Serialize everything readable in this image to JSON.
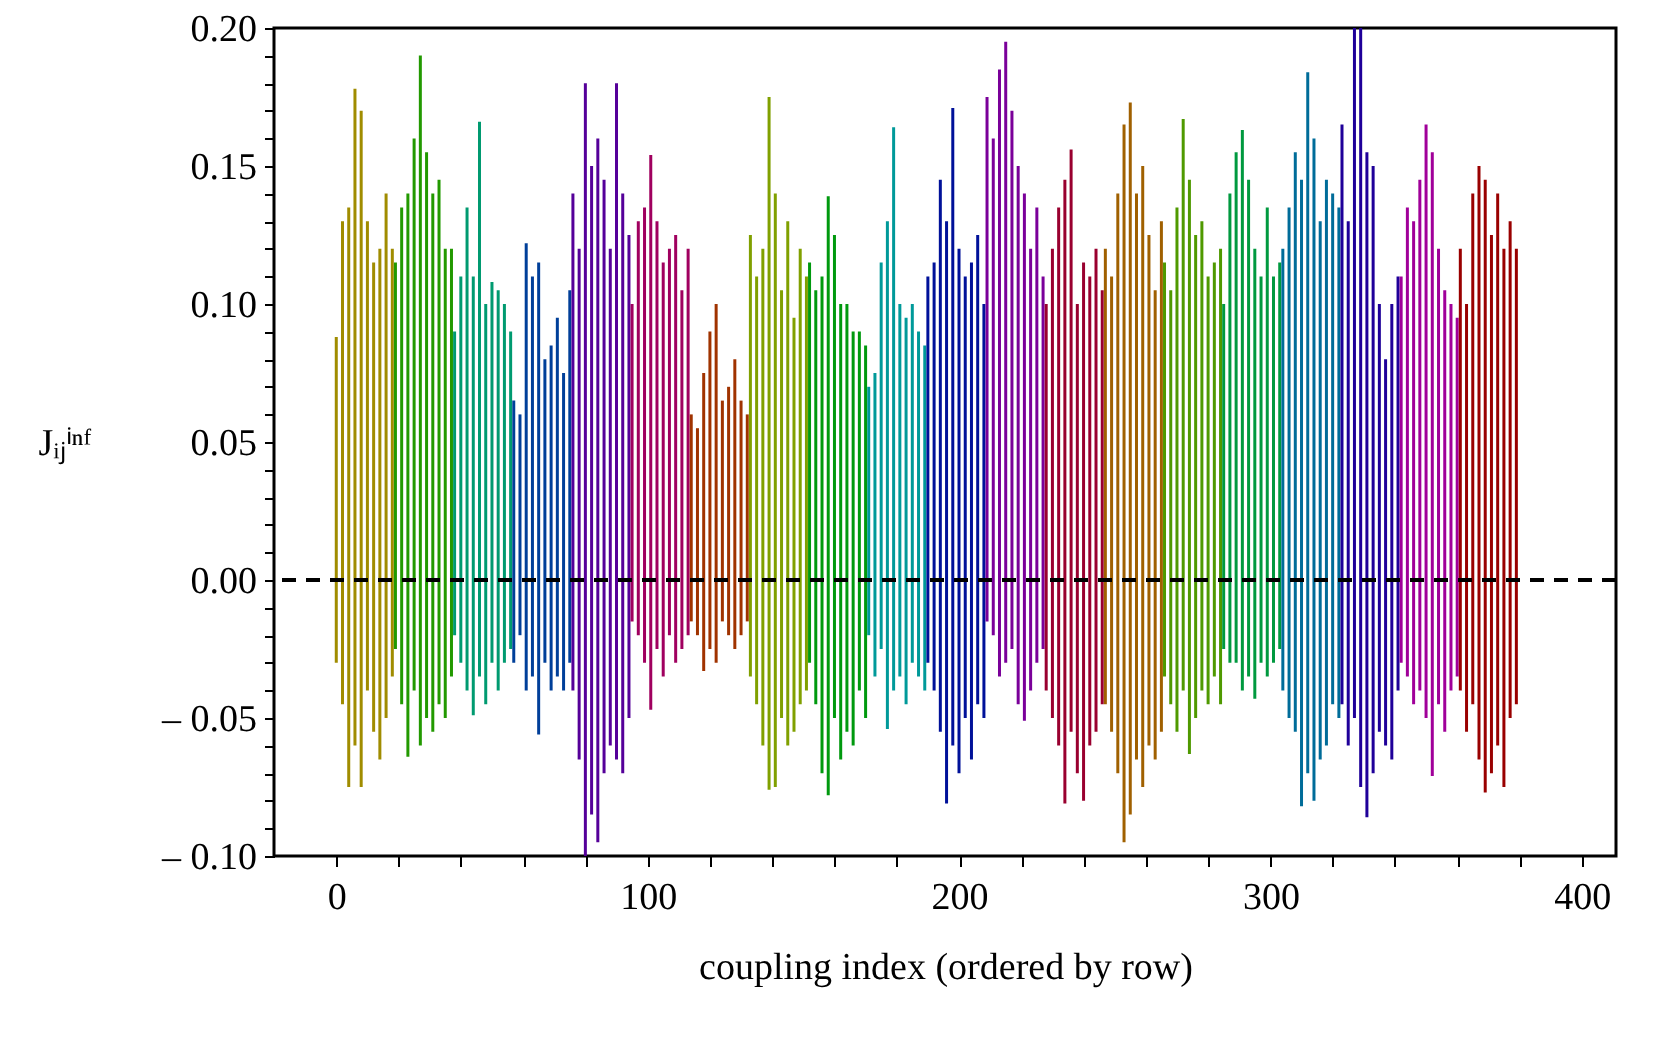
{
  "chart_data": {
    "type": "bar",
    "xlabel": "coupling index (ordered by row)",
    "ylabel": "Jᵢⱼⁱⁿᶠ",
    "x": [
      0,
      2,
      4,
      6,
      8,
      10,
      12,
      14,
      16,
      18,
      19,
      21,
      23,
      25,
      27,
      29,
      31,
      33,
      35,
      37,
      38,
      40,
      42,
      44,
      46,
      48,
      50,
      52,
      54,
      56,
      57,
      59,
      61,
      63,
      65,
      67,
      69,
      71,
      73,
      75,
      76,
      78,
      80,
      82,
      84,
      86,
      88,
      90,
      92,
      94,
      95,
      97,
      99,
      101,
      103,
      105,
      107,
      109,
      111,
      113,
      114,
      116,
      118,
      120,
      122,
      124,
      126,
      128,
      130,
      132,
      133,
      135,
      137,
      139,
      141,
      143,
      145,
      147,
      149,
      151,
      152,
      154,
      156,
      158,
      160,
      162,
      164,
      166,
      168,
      170,
      171,
      173,
      175,
      177,
      179,
      181,
      183,
      185,
      187,
      189,
      190,
      192,
      194,
      196,
      198,
      200,
      202,
      204,
      206,
      208,
      209,
      211,
      213,
      215,
      217,
      219,
      221,
      223,
      225,
      227,
      228,
      230,
      232,
      234,
      236,
      238,
      240,
      242,
      244,
      246,
      247,
      249,
      251,
      253,
      255,
      257,
      259,
      261,
      263,
      265,
      266,
      268,
      270,
      272,
      274,
      276,
      278,
      280,
      282,
      284,
      285,
      287,
      289,
      291,
      293,
      295,
      297,
      299,
      301,
      303,
      304,
      306,
      308,
      310,
      312,
      314,
      316,
      318,
      320,
      322,
      323,
      325,
      327,
      329,
      331,
      333,
      335,
      337,
      339,
      341,
      342,
      344,
      346,
      348,
      350,
      352,
      354,
      356,
      358,
      360,
      361,
      363,
      365,
      367,
      369,
      371,
      373,
      375,
      377,
      379
    ],
    "base": [
      -0.03,
      -0.045,
      -0.075,
      -0.06,
      -0.075,
      -0.04,
      -0.055,
      -0.065,
      -0.05,
      -0.035,
      -0.025,
      -0.045,
      -0.064,
      -0.04,
      -0.06,
      -0.05,
      -0.055,
      -0.045,
      -0.05,
      -0.035,
      -0.02,
      -0.03,
      -0.04,
      -0.049,
      -0.035,
      -0.045,
      -0.03,
      -0.04,
      -0.03,
      -0.025,
      -0.03,
      -0.02,
      -0.04,
      -0.035,
      -0.056,
      -0.03,
      -0.04,
      -0.035,
      -0.04,
      -0.03,
      -0.04,
      -0.065,
      -0.1,
      -0.085,
      -0.095,
      -0.07,
      -0.06,
      -0.065,
      -0.07,
      -0.05,
      -0.015,
      -0.02,
      -0.03,
      -0.047,
      -0.025,
      -0.035,
      -0.02,
      -0.03,
      -0.025,
      -0.02,
      -0.015,
      -0.02,
      -0.033,
      -0.025,
      -0.03,
      -0.015,
      -0.02,
      -0.025,
      -0.02,
      -0.015,
      -0.035,
      -0.045,
      -0.06,
      -0.076,
      -0.075,
      -0.05,
      -0.06,
      -0.055,
      -0.045,
      -0.04,
      -0.03,
      -0.045,
      -0.07,
      -0.078,
      -0.05,
      -0.065,
      -0.055,
      -0.06,
      -0.04,
      -0.05,
      -0.02,
      -0.035,
      -0.025,
      -0.054,
      -0.04,
      -0.035,
      -0.045,
      -0.03,
      -0.035,
      -0.04,
      -0.03,
      -0.04,
      -0.055,
      -0.081,
      -0.06,
      -0.07,
      -0.05,
      -0.065,
      -0.045,
      -0.05,
      -0.015,
      -0.02,
      -0.035,
      -0.03,
      -0.025,
      -0.045,
      -0.051,
      -0.04,
      -0.03,
      -0.025,
      -0.04,
      -0.05,
      -0.06,
      -0.081,
      -0.055,
      -0.07,
      -0.08,
      -0.06,
      -0.055,
      -0.045,
      -0.045,
      -0.055,
      -0.07,
      -0.095,
      -0.085,
      -0.065,
      -0.075,
      -0.06,
      -0.065,
      -0.055,
      -0.035,
      -0.045,
      -0.055,
      -0.04,
      -0.063,
      -0.05,
      -0.04,
      -0.045,
      -0.035,
      -0.045,
      -0.025,
      -0.03,
      -0.03,
      -0.04,
      -0.035,
      -0.043,
      -0.03,
      -0.035,
      -0.03,
      -0.025,
      -0.04,
      -0.05,
      -0.055,
      -0.082,
      -0.07,
      -0.08,
      -0.065,
      -0.06,
      -0.045,
      -0.05,
      -0.045,
      -0.06,
      -0.05,
      -0.075,
      -0.086,
      -0.07,
      -0.055,
      -0.06,
      -0.065,
      -0.04,
      -0.03,
      -0.035,
      -0.045,
      -0.04,
      -0.05,
      -0.071,
      -0.045,
      -0.055,
      -0.04,
      -0.035,
      -0.04,
      -0.055,
      -0.045,
      -0.065,
      -0.077,
      -0.07,
      -0.06,
      -0.075,
      -0.05,
      -0.045
    ],
    "values": [
      0.118,
      0.175,
      0.21,
      0.238,
      0.245,
      0.17,
      0.17,
      0.185,
      0.19,
      0.155,
      0.14,
      0.18,
      0.204,
      0.2,
      0.25,
      0.205,
      0.195,
      0.19,
      0.17,
      0.155,
      0.11,
      0.14,
      0.175,
      0.159,
      0.201,
      0.145,
      0.138,
      0.145,
      0.13,
      0.115,
      0.095,
      0.08,
      0.162,
      0.145,
      0.171,
      0.11,
      0.125,
      0.13,
      0.115,
      0.135,
      0.18,
      0.185,
      0.28,
      0.235,
      0.255,
      0.215,
      0.18,
      0.245,
      0.21,
      0.175,
      0.115,
      0.15,
      0.165,
      0.201,
      0.155,
      0.15,
      0.14,
      0.155,
      0.13,
      0.14,
      0.075,
      0.075,
      0.108,
      0.115,
      0.13,
      0.08,
      0.09,
      0.105,
      0.085,
      0.075,
      0.16,
      0.155,
      0.18,
      0.251,
      0.215,
      0.155,
      0.19,
      0.15,
      0.165,
      0.15,
      0.145,
      0.15,
      0.18,
      0.217,
      0.175,
      0.165,
      0.155,
      0.15,
      0.13,
      0.135,
      0.09,
      0.11,
      0.14,
      0.184,
      0.204,
      0.135,
      0.14,
      0.13,
      0.125,
      0.125,
      0.14,
      0.155,
      0.2,
      0.211,
      0.231,
      0.19,
      0.16,
      0.18,
      0.17,
      0.15,
      0.19,
      0.18,
      0.22,
      0.225,
      0.195,
      0.195,
      0.191,
      0.16,
      0.165,
      0.135,
      0.14,
      0.17,
      0.195,
      0.226,
      0.211,
      0.17,
      0.195,
      0.17,
      0.175,
      0.15,
      0.165,
      0.165,
      0.21,
      0.26,
      0.258,
      0.205,
      0.225,
      0.185,
      0.17,
      0.185,
      0.15,
      0.15,
      0.19,
      0.207,
      0.208,
      0.175,
      0.17,
      0.155,
      0.15,
      0.165,
      0.125,
      0.17,
      0.185,
      0.203,
      0.18,
      0.163,
      0.14,
      0.17,
      0.14,
      0.14,
      0.16,
      0.185,
      0.21,
      0.227,
      0.254,
      0.24,
      0.195,
      0.205,
      0.185,
      0.185,
      0.21,
      0.19,
      0.25,
      0.275,
      0.241,
      0.22,
      0.155,
      0.14,
      0.165,
      0.15,
      0.14,
      0.17,
      0.175,
      0.185,
      0.215,
      0.226,
      0.165,
      0.16,
      0.14,
      0.13,
      0.16,
      0.155,
      0.185,
      0.215,
      0.222,
      0.195,
      0.2,
      0.195,
      0.18,
      0.165
    ],
    "colors": [
      "#a08c00",
      "#a08c00",
      "#a08c00",
      "#a08c00",
      "#a08c00",
      "#a08c00",
      "#a08c00",
      "#a08c00",
      "#a08c00",
      "#a08c00",
      "#229900",
      "#229900",
      "#229900",
      "#229900",
      "#229900",
      "#229900",
      "#229900",
      "#229900",
      "#229900",
      "#229900",
      "#009a70",
      "#009a70",
      "#009a70",
      "#009a70",
      "#009a70",
      "#009a70",
      "#009a70",
      "#009a70",
      "#009a70",
      "#009a70",
      "#003f99",
      "#003f99",
      "#003f99",
      "#003f99",
      "#003f99",
      "#003f99",
      "#003f99",
      "#003f99",
      "#003f99",
      "#003f99",
      "#550099",
      "#550099",
      "#550099",
      "#550099",
      "#550099",
      "#550099",
      "#550099",
      "#550099",
      "#550099",
      "#550099",
      "#a0005f",
      "#a0005f",
      "#a0005f",
      "#a0005f",
      "#a0005f",
      "#a0005f",
      "#a0005f",
      "#a0005f",
      "#a0005f",
      "#a0005f",
      "#a03300",
      "#a03300",
      "#a03300",
      "#a03300",
      "#a03300",
      "#a03300",
      "#a03300",
      "#a03300",
      "#a03300",
      "#a03300",
      "#80a000",
      "#80a000",
      "#80a000",
      "#80a000",
      "#80a000",
      "#80a000",
      "#80a000",
      "#80a000",
      "#80a000",
      "#80a000",
      "#00990e",
      "#00990e",
      "#00990e",
      "#00990e",
      "#00990e",
      "#00990e",
      "#00990e",
      "#00990e",
      "#00990e",
      "#00990e",
      "#009999",
      "#009999",
      "#009999",
      "#009999",
      "#009999",
      "#009999",
      "#009999",
      "#009999",
      "#009999",
      "#009999",
      "#001199",
      "#001199",
      "#001199",
      "#001199",
      "#001199",
      "#001199",
      "#001199",
      "#001199",
      "#001199",
      "#001199",
      "#7a0099",
      "#7a0099",
      "#7a0099",
      "#7a0099",
      "#7a0099",
      "#7a0099",
      "#7a0099",
      "#7a0099",
      "#7a0099",
      "#7a0099",
      "#99002f",
      "#99002f",
      "#99002f",
      "#99002f",
      "#99002f",
      "#99002f",
      "#99002f",
      "#99002f",
      "#99002f",
      "#99002f",
      "#a06000",
      "#a06000",
      "#a06000",
      "#a06000",
      "#a06000",
      "#a06000",
      "#a06000",
      "#a06000",
      "#a06000",
      "#a06000",
      "#4f9900",
      "#4f9900",
      "#4f9900",
      "#4f9900",
      "#4f9900",
      "#4f9900",
      "#4f9900",
      "#4f9900",
      "#4f9900",
      "#4f9900",
      "#00993f",
      "#00993f",
      "#00993f",
      "#00993f",
      "#00993f",
      "#00993f",
      "#00993f",
      "#00993f",
      "#00993f",
      "#00993f",
      "#006c99",
      "#006c99",
      "#006c99",
      "#006c99",
      "#006c99",
      "#006c99",
      "#006c99",
      "#006c99",
      "#006c99",
      "#006c99",
      "#1f0099",
      "#1f0099",
      "#1f0099",
      "#1f0099",
      "#1f0099",
      "#1f0099",
      "#1f0099",
      "#1f0099",
      "#1f0099",
      "#1f0099",
      "#a00099",
      "#a00099",
      "#a00099",
      "#a00099",
      "#a00099",
      "#a00099",
      "#a00099",
      "#a00099",
      "#a00099",
      "#a00099",
      "#990000",
      "#990000",
      "#990000",
      "#990000",
      "#990000",
      "#990000",
      "#990000",
      "#990000",
      "#990000",
      "#990000"
    ],
    "xlim": [
      -20,
      411
    ],
    "xticks": [
      0,
      {
        "value": 20,
        "label": null
      },
      {
        "value": 40,
        "label": null
      },
      {
        "value": 60,
        "label": null
      },
      {
        "value": 80,
        "label": null
      },
      100,
      {
        "value": 120,
        "label": null
      },
      {
        "value": 140,
        "label": null
      },
      {
        "value": 160,
        "label": null
      },
      {
        "value": 180,
        "label": null
      },
      200,
      {
        "value": 220,
        "label": null
      },
      {
        "value": 240,
        "label": null
      },
      {
        "value": 260,
        "label": null
      },
      {
        "value": 280,
        "label": null
      },
      300,
      {
        "value": 320,
        "label": null
      },
      {
        "value": 340,
        "label": null
      },
      {
        "value": 360,
        "label": null
      },
      {
        "value": 380,
        "label": null
      },
      400
    ],
    "ylim": [
      -0.1,
      0.2
    ],
    "yticks": [
      {
        "value": -0.1,
        "label": "– 0.10"
      },
      {
        "value": -0.09,
        "label": null
      },
      {
        "value": -0.08,
        "label": null
      },
      {
        "value": -0.07,
        "label": null
      },
      {
        "value": -0.06,
        "label": null
      },
      {
        "value": -0.05,
        "label": "– 0.05"
      },
      {
        "value": -0.04,
        "label": null
      },
      {
        "value": -0.03,
        "label": null
      },
      {
        "value": -0.02,
        "label": null
      },
      {
        "value": -0.01,
        "label": null
      },
      {
        "value": 0,
        "label": "0.00"
      },
      {
        "value": 0.01,
        "label": null
      },
      {
        "value": 0.02,
        "label": null
      },
      {
        "value": 0.03,
        "label": null
      },
      {
        "value": 0.04,
        "label": null
      },
      {
        "value": 0.05,
        "label": "0.05"
      },
      {
        "value": 0.06,
        "label": null
      },
      {
        "value": 0.07,
        "label": null
      },
      {
        "value": 0.08,
        "label": null
      },
      {
        "value": 0.09,
        "label": null
      },
      {
        "value": 0.1,
        "label": "0.10"
      },
      {
        "value": 0.11,
        "label": null
      },
      {
        "value": 0.12,
        "label": null
      },
      {
        "value": 0.13,
        "label": null
      },
      {
        "value": 0.14,
        "label": null
      },
      {
        "value": 0.15,
        "label": "0.15"
      },
      {
        "value": 0.16,
        "label": null
      },
      {
        "value": 0.17,
        "label": null
      },
      {
        "value": 0.18,
        "label": null
      },
      {
        "value": 0.19,
        "label": null
      },
      {
        "value": 0.2,
        "label": "0.20"
      }
    ],
    "ref_lines": [
      {
        "axis": "y",
        "value": 0,
        "color": "#000000",
        "line_style": "dashed"
      }
    ],
    "grid": false
  }
}
